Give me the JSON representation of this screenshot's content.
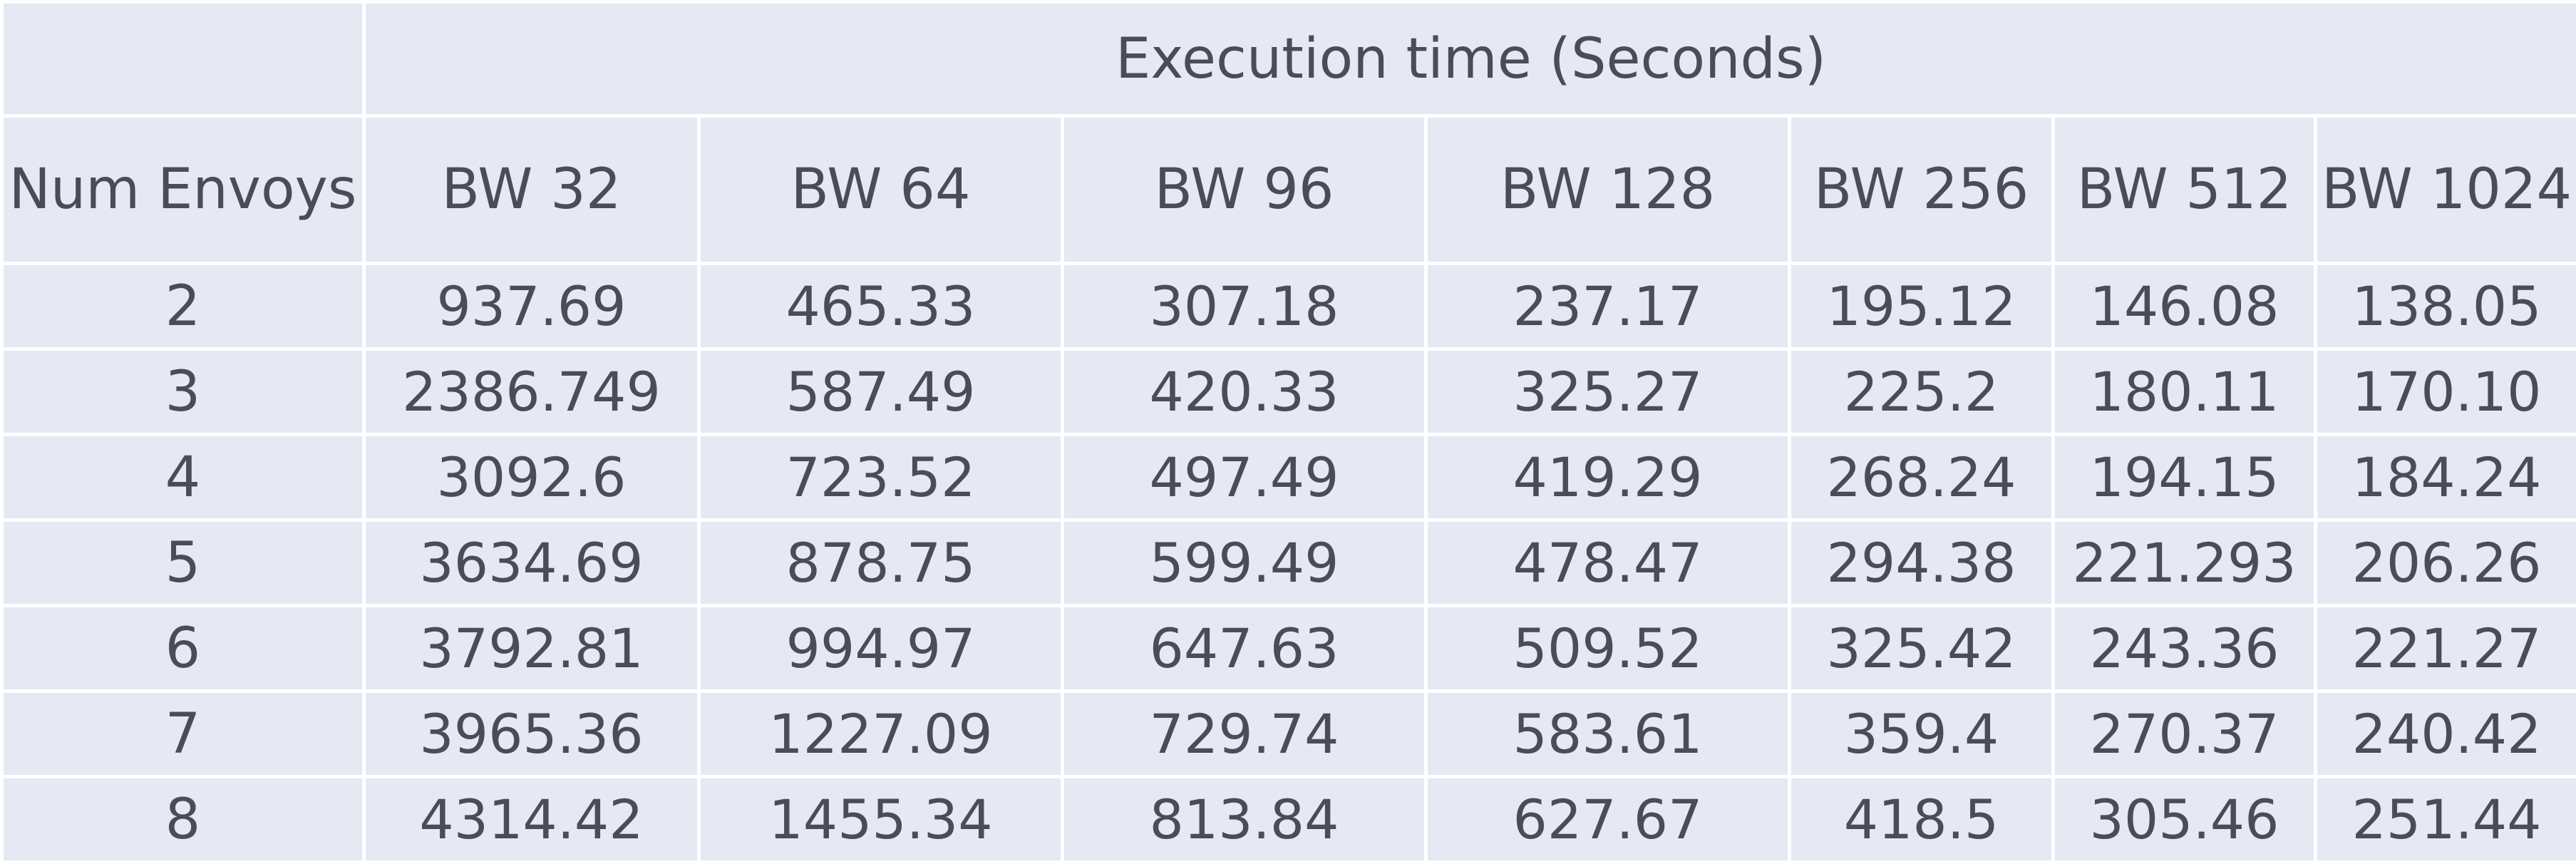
{
  "table": {
    "super_header": "Execution time (Seconds)",
    "row_header": "Num Envoys",
    "columns": [
      "BW 32",
      "BW 64",
      "BW 96",
      "BW 128",
      "BW 256",
      "BW 512",
      "BW 1024"
    ],
    "rows": [
      {
        "envoys": "2",
        "values": [
          "937.69",
          "465.33",
          "307.18",
          "237.17",
          "195.12",
          "146.08",
          "138.05"
        ]
      },
      {
        "envoys": "3",
        "values": [
          "2386.749",
          "587.49",
          "420.33",
          "325.27",
          "225.2",
          "180.11",
          "170.10"
        ]
      },
      {
        "envoys": "4",
        "values": [
          "3092.6",
          "723.52",
          "497.49",
          "419.29",
          "268.24",
          "194.15",
          "184.24"
        ]
      },
      {
        "envoys": "5",
        "values": [
          "3634.69",
          "878.75",
          "599.49",
          "478.47",
          "294.38",
          "221.293",
          "206.26"
        ]
      },
      {
        "envoys": "6",
        "values": [
          "3792.81",
          "994.97",
          "647.63",
          "509.52",
          "325.42",
          "243.36",
          "221.27"
        ]
      },
      {
        "envoys": "7",
        "values": [
          "3965.36",
          "1227.09",
          "729.74",
          "583.61",
          "359.4",
          "270.37",
          "240.42"
        ]
      },
      {
        "envoys": "8",
        "values": [
          "4314.42",
          "1455.34",
          "813.84",
          "627.67",
          "418.5",
          "305.46",
          "251.44"
        ]
      }
    ]
  }
}
